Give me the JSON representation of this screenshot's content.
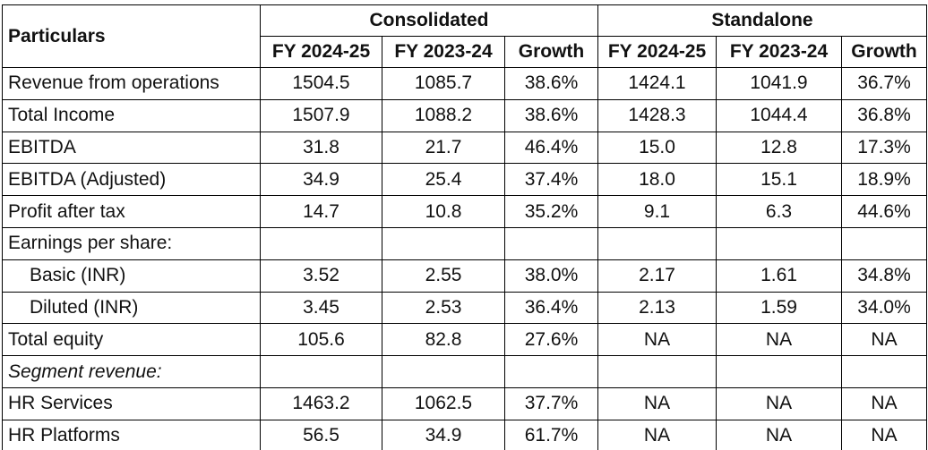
{
  "header": {
    "particulars": "Particulars",
    "groups": [
      "Consolidated",
      "Standalone"
    ],
    "columns": [
      "FY 2024-25",
      "FY 2023-24",
      "Growth",
      "FY 2024-25",
      "FY 2023-24",
      "Growth"
    ]
  },
  "rows": [
    {
      "label": "Revenue from operations",
      "values": [
        "1504.5",
        "1085.7",
        "38.6%",
        "1424.1",
        "1041.9",
        "36.7%"
      ]
    },
    {
      "label": "Total Income",
      "values": [
        "1507.9",
        "1088.2",
        "38.6%",
        "1428.3",
        "1044.4",
        "36.8%"
      ]
    },
    {
      "label": "EBITDA",
      "values": [
        "31.8",
        "21.7",
        "46.4%",
        "15.0",
        "12.8",
        "17.3%"
      ]
    },
    {
      "label": "EBITDA (Adjusted)",
      "values": [
        "34.9",
        "25.4",
        "37.4%",
        "18.0",
        "15.1",
        "18.9%"
      ]
    },
    {
      "label": "Profit after tax",
      "values": [
        "14.7",
        "10.8",
        "35.2%",
        "9.1",
        "6.3",
        "44.6%"
      ]
    },
    {
      "label": "Earnings per share:",
      "values": [
        "",
        "",
        "",
        "",
        "",
        ""
      ]
    },
    {
      "label": "Basic (INR)",
      "values": [
        "3.52",
        "2.55",
        "38.0%",
        "2.17",
        "1.61",
        "34.8%"
      ]
    },
    {
      "label": "Diluted (INR)",
      "values": [
        "3.45",
        "2.53",
        "36.4%",
        "2.13",
        "1.59",
        "34.0%"
      ]
    },
    {
      "label": "Total equity",
      "values": [
        "105.6",
        "82.8",
        "27.6%",
        "NA",
        "NA",
        "NA"
      ]
    },
    {
      "label": "Segment revenue:",
      "values": [
        "",
        "",
        "",
        "",
        "",
        ""
      ]
    },
    {
      "label": "HR Services",
      "values": [
        "1463.2",
        "1062.5",
        "37.7%",
        "NA",
        "NA",
        "NA"
      ]
    },
    {
      "label": "HR Platforms",
      "values": [
        "56.5",
        "34.9",
        "61.7%",
        "NA",
        "NA",
        "NA"
      ]
    }
  ]
}
